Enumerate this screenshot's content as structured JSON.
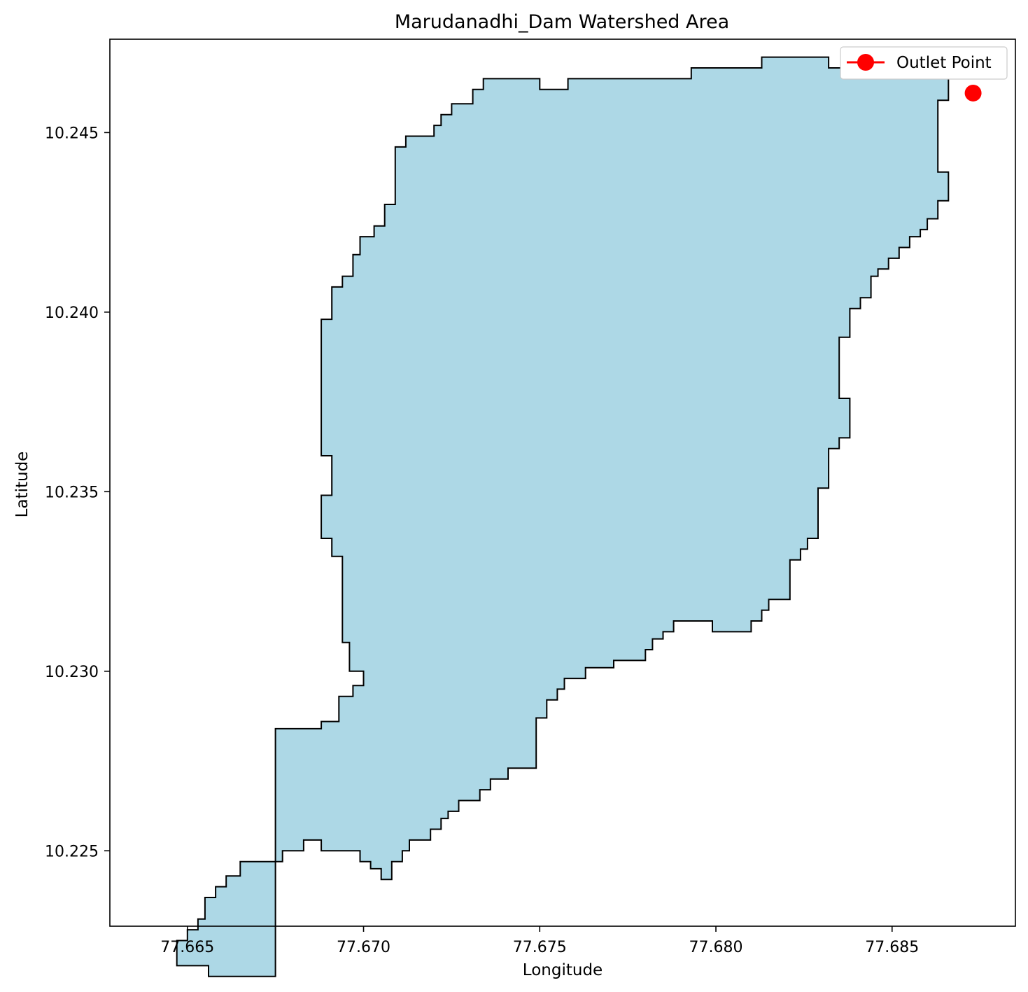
{
  "chart_data": {
    "type": "area",
    "title": "Marudanadhi_Dam Watershed Area",
    "xlabel": "Longitude",
    "ylabel": "Latitude",
    "xlim": [
      77.6628,
      77.6885
    ],
    "ylim": [
      10.2229,
      10.2476
    ],
    "xticks": [
      77.665,
      77.67,
      77.675,
      77.68,
      77.685
    ],
    "xtick_labels": [
      "77.665",
      "77.670",
      "77.675",
      "77.680",
      "77.685"
    ],
    "yticks": [
      10.225,
      10.23,
      10.235,
      10.24,
      10.245
    ],
    "ytick_labels": [
      "10.225",
      "10.230",
      "10.235",
      "10.240",
      "10.245"
    ],
    "grid": false,
    "legend": {
      "placement": "top-right",
      "entries": [
        "Outlet Point"
      ]
    },
    "series": [
      {
        "name": "Watershed",
        "kind": "polygon",
        "fill": "#add8e6",
        "edge": "#000000",
        "points": [
          [
            77.6675,
            10.2247
          ],
          [
            77.6665,
            10.2247
          ],
          [
            77.6665,
            10.2243
          ],
          [
            77.6661,
            10.2243
          ],
          [
            77.6661,
            10.224
          ],
          [
            77.6658,
            10.224
          ],
          [
            77.6658,
            10.2237
          ],
          [
            77.6655,
            10.2237
          ],
          [
            77.6655,
            10.2231
          ],
          [
            77.6653,
            10.2231
          ],
          [
            77.6653,
            10.2228
          ],
          [
            77.665,
            10.2228
          ],
          [
            77.665,
            10.2225
          ],
          [
            77.6647,
            10.2225
          ],
          [
            77.6647,
            10.2218
          ],
          [
            77.6656,
            10.2218
          ],
          [
            77.6656,
            10.2215
          ],
          [
            77.6675,
            10.2215
          ],
          [
            77.6675,
            10.2284
          ],
          [
            77.6688,
            10.2284
          ],
          [
            77.6688,
            10.2286
          ],
          [
            77.6693,
            10.2286
          ],
          [
            77.6693,
            10.229
          ],
          [
            77.6693,
            10.2293
          ],
          [
            77.6697,
            10.2293
          ],
          [
            77.6697,
            10.2296
          ],
          [
            77.67,
            10.2296
          ],
          [
            77.67,
            10.23
          ],
          [
            77.6696,
            10.23
          ],
          [
            77.6696,
            10.2308
          ],
          [
            77.6694,
            10.2308
          ],
          [
            77.6694,
            10.2332
          ],
          [
            77.6691,
            10.2332
          ],
          [
            77.6691,
            10.2337
          ],
          [
            77.6688,
            10.2337
          ],
          [
            77.6688,
            10.2349
          ],
          [
            77.6691,
            10.2349
          ],
          [
            77.6691,
            10.236
          ],
          [
            77.6688,
            10.236
          ],
          [
            77.6688,
            10.2398
          ],
          [
            77.6691,
            10.2398
          ],
          [
            77.6691,
            10.2407
          ],
          [
            77.6694,
            10.2407
          ],
          [
            77.6694,
            10.241
          ],
          [
            77.6697,
            10.241
          ],
          [
            77.6697,
            10.2416
          ],
          [
            77.6699,
            10.2416
          ],
          [
            77.6699,
            10.2421
          ],
          [
            77.6703,
            10.2421
          ],
          [
            77.6703,
            10.2424
          ],
          [
            77.6706,
            10.2424
          ],
          [
            77.6706,
            10.243
          ],
          [
            77.6709,
            10.243
          ],
          [
            77.6709,
            10.2446
          ],
          [
            77.6712,
            10.2446
          ],
          [
            77.6712,
            10.2449
          ],
          [
            77.672,
            10.2449
          ],
          [
            77.672,
            10.2452
          ],
          [
            77.6722,
            10.2452
          ],
          [
            77.6722,
            10.2455
          ],
          [
            77.6725,
            10.2455
          ],
          [
            77.6725,
            10.2458
          ],
          [
            77.6731,
            10.2458
          ],
          [
            77.6731,
            10.2462
          ],
          [
            77.6734,
            10.2462
          ],
          [
            77.6734,
            10.2465
          ],
          [
            77.675,
            10.2465
          ],
          [
            77.675,
            10.2462
          ],
          [
            77.6758,
            10.2462
          ],
          [
            77.6758,
            10.2465
          ],
          [
            77.6793,
            10.2465
          ],
          [
            77.6793,
            10.2468
          ],
          [
            77.6813,
            10.2468
          ],
          [
            77.6813,
            10.2471
          ],
          [
            77.6832,
            10.2471
          ],
          [
            77.6832,
            10.2468
          ],
          [
            77.6868,
            10.2468
          ],
          [
            77.6868,
            10.2465
          ],
          [
            77.6866,
            10.2465
          ],
          [
            77.6866,
            10.2459
          ],
          [
            77.6863,
            10.2459
          ],
          [
            77.6863,
            10.2439
          ],
          [
            77.6866,
            10.2439
          ],
          [
            77.6866,
            10.2431
          ],
          [
            77.6863,
            10.2431
          ],
          [
            77.6863,
            10.2426
          ],
          [
            77.686,
            10.2426
          ],
          [
            77.686,
            10.2423
          ],
          [
            77.6858,
            10.2423
          ],
          [
            77.6858,
            10.2421
          ],
          [
            77.6855,
            10.2421
          ],
          [
            77.6855,
            10.2418
          ],
          [
            77.6852,
            10.2418
          ],
          [
            77.6852,
            10.2415
          ],
          [
            77.6849,
            10.2415
          ],
          [
            77.6849,
            10.2412
          ],
          [
            77.6846,
            10.2412
          ],
          [
            77.6846,
            10.241
          ],
          [
            77.6844,
            10.241
          ],
          [
            77.6844,
            10.2404
          ],
          [
            77.6841,
            10.2404
          ],
          [
            77.6841,
            10.2401
          ],
          [
            77.6838,
            10.2401
          ],
          [
            77.6838,
            10.2393
          ],
          [
            77.6835,
            10.2393
          ],
          [
            77.6835,
            10.2376
          ],
          [
            77.6838,
            10.2376
          ],
          [
            77.6838,
            10.2365
          ],
          [
            77.6835,
            10.2365
          ],
          [
            77.6835,
            10.2362
          ],
          [
            77.6832,
            10.2362
          ],
          [
            77.6832,
            10.2351
          ],
          [
            77.6829,
            10.2351
          ],
          [
            77.6829,
            10.2337
          ],
          [
            77.6826,
            10.2337
          ],
          [
            77.6826,
            10.2334
          ],
          [
            77.6824,
            10.2334
          ],
          [
            77.6824,
            10.2331
          ],
          [
            77.6821,
            10.2331
          ],
          [
            77.6821,
            10.232
          ],
          [
            77.6815,
            10.232
          ],
          [
            77.6815,
            10.2317
          ],
          [
            77.6813,
            10.2317
          ],
          [
            77.6813,
            10.2314
          ],
          [
            77.681,
            10.2314
          ],
          [
            77.681,
            10.2311
          ],
          [
            77.6799,
            10.2311
          ],
          [
            77.6799,
            10.2314
          ],
          [
            77.6788,
            10.2314
          ],
          [
            77.6788,
            10.2311
          ],
          [
            77.6785,
            10.2311
          ],
          [
            77.6785,
            10.2309
          ],
          [
            77.6782,
            10.2309
          ],
          [
            77.6782,
            10.2306
          ],
          [
            77.678,
            10.2306
          ],
          [
            77.678,
            10.2303
          ],
          [
            77.6771,
            10.2303
          ],
          [
            77.6771,
            10.2301
          ],
          [
            77.6763,
            10.2301
          ],
          [
            77.6763,
            10.2298
          ],
          [
            77.6757,
            10.2298
          ],
          [
            77.6757,
            10.2295
          ],
          [
            77.6755,
            10.2295
          ],
          [
            77.6755,
            10.2292
          ],
          [
            77.6752,
            10.2292
          ],
          [
            77.6752,
            10.2287
          ],
          [
            77.6749,
            10.2287
          ],
          [
            77.6749,
            10.2273
          ],
          [
            77.6741,
            10.2273
          ],
          [
            77.6741,
            10.227
          ],
          [
            77.6736,
            10.227
          ],
          [
            77.6736,
            10.2267
          ],
          [
            77.6733,
            10.2267
          ],
          [
            77.6733,
            10.2264
          ],
          [
            77.6727,
            10.2264
          ],
          [
            77.6727,
            10.2261
          ],
          [
            77.6724,
            10.2261
          ],
          [
            77.6724,
            10.2259
          ],
          [
            77.6722,
            10.2259
          ],
          [
            77.6722,
            10.2256
          ],
          [
            77.6719,
            10.2256
          ],
          [
            77.6719,
            10.2253
          ],
          [
            77.6713,
            10.2253
          ],
          [
            77.6713,
            10.225
          ],
          [
            77.6711,
            10.225
          ],
          [
            77.6711,
            10.2247
          ],
          [
            77.6708,
            10.2247
          ],
          [
            77.6708,
            10.2242
          ],
          [
            77.6705,
            10.2242
          ],
          [
            77.6705,
            10.2245
          ],
          [
            77.6702,
            10.2245
          ],
          [
            77.6702,
            10.2247
          ],
          [
            77.6699,
            10.2247
          ],
          [
            77.6699,
            10.225
          ],
          [
            77.6688,
            10.225
          ],
          [
            77.6688,
            10.2253
          ],
          [
            77.6683,
            10.2253
          ],
          [
            77.6683,
            10.225
          ],
          [
            77.6677,
            10.225
          ],
          [
            77.6677,
            10.2247
          ],
          [
            77.6675,
            10.2247
          ]
        ]
      },
      {
        "name": "Outlet Point",
        "kind": "point",
        "color": "#ff0000",
        "x": [
          77.6873
        ],
        "y": [
          10.2461
        ]
      }
    ]
  }
}
